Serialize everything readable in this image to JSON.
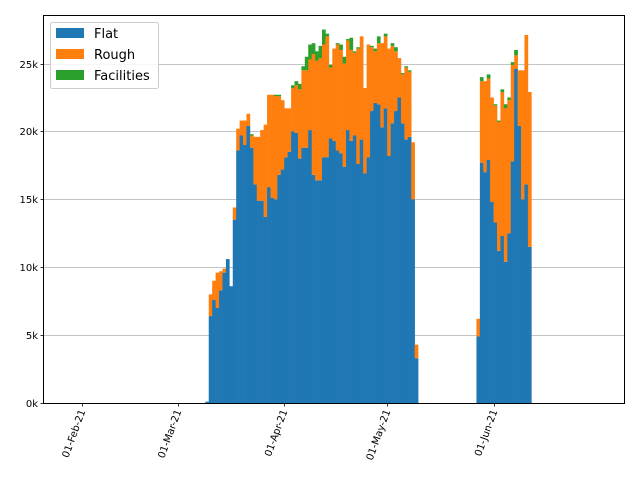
{
  "chart_data": {
    "type": "bar",
    "stacked": true,
    "title": "",
    "xlabel": "",
    "ylabel": "",
    "ylim": [
      0,
      28500
    ],
    "grid": "y",
    "legend_position": "top-left",
    "y_ticks": [
      {
        "value": 0,
        "label": "0k"
      },
      {
        "value": 5000,
        "label": "5k"
      },
      {
        "value": 10000,
        "label": "10k"
      },
      {
        "value": 15000,
        "label": "15k"
      },
      {
        "value": 20000,
        "label": "20k"
      },
      {
        "value": 25000,
        "label": "25k"
      }
    ],
    "x_ticks": [
      {
        "date": "2021-02-01",
        "label": "01-Feb-21"
      },
      {
        "date": "2021-03-01",
        "label": "01-Mar-21"
      },
      {
        "date": "2021-04-01",
        "label": "01-Apr-21"
      },
      {
        "date": "2021-05-01",
        "label": "01-May-21"
      },
      {
        "date": "2021-06-01",
        "label": "01-Jun-21"
      }
    ],
    "xlim": [
      "2021-01-21",
      "2021-07-09"
    ],
    "series": [
      {
        "name": "Flat",
        "color": "#1f77b4"
      },
      {
        "name": "Rough",
        "color": "#ff7f0e"
      },
      {
        "name": "Facilities",
        "color": "#2ca02c"
      }
    ],
    "segments": [
      {
        "start": "2021-03-09",
        "flat": [
          100,
          6400,
          7600,
          7000,
          8300,
          9600,
          10600,
          8600,
          13500,
          18600,
          19700,
          19000,
          20400,
          18800,
          16100,
          14900,
          14900,
          13700,
          15900,
          15100,
          15000,
          16800,
          17200,
          18100,
          18500,
          20000,
          19900,
          18000,
          18800,
          18800,
          20100,
          16800,
          16400,
          16400,
          18100,
          18100,
          19500,
          19300,
          18600,
          18400,
          17400,
          20100,
          19300,
          19700,
          17600,
          19400,
          16900,
          18100,
          21500,
          22100,
          22000,
          20300,
          21700,
          18200,
          20600,
          21500,
          22500,
          20600,
          19400,
          19600,
          15000
        ],
        "rough": [
          0,
          1600,
          1400,
          2600,
          1400,
          300,
          0,
          0,
          900,
          1600,
          1100,
          1800,
          900,
          900,
          3500,
          4700,
          5200,
          6800,
          6800,
          7600,
          7600,
          5800,
          5100,
          3600,
          3200,
          3200,
          3500,
          5100,
          5700,
          5700,
          5200,
          8900,
          8800,
          9000,
          8300,
          8900,
          5200,
          6800,
          7800,
          7600,
          7600,
          6600,
          6700,
          6100,
          8500,
          7600,
          6300,
          8300,
          4700,
          3800,
          4500,
          6200,
          5300,
          7900,
          5700,
          4400,
          2900,
          3600,
          5300,
          4800,
          4200
        ],
        "facilities": [
          0,
          0,
          0,
          0,
          0,
          0,
          0,
          0,
          0,
          0,
          0,
          0,
          0,
          100,
          0,
          0,
          0,
          0,
          0,
          0,
          100,
          100,
          0,
          0,
          0,
          200,
          300,
          400,
          300,
          1000,
          1100,
          800,
          700,
          900,
          1100,
          200,
          200,
          0,
          100,
          400,
          500,
          100,
          900,
          100,
          100,
          0,
          0,
          0,
          100,
          200,
          500,
          0,
          200,
          0,
          200,
          300,
          0,
          100,
          100,
          100,
          0
        ]
      },
      {
        "start": "2021-05-09",
        "flat": [
          3300
        ],
        "rough": [
          1000
        ],
        "facilities": [
          0
        ]
      },
      {
        "start": "2021-05-27",
        "flat": [
          4900,
          17700,
          17000,
          17900,
          14800,
          13300,
          11200,
          12300,
          10400,
          12500,
          17800,
          24600,
          20400,
          15000,
          16100,
          11500
        ],
        "rough": [
          1300,
          6000,
          6700,
          6000,
          7700,
          8600,
          9500,
          10600,
          11300,
          9800,
          7100,
          1000,
          4100,
          9500,
          11000,
          11400
        ],
        "facilities": [
          0,
          300,
          0,
          300,
          0,
          100,
          100,
          200,
          300,
          200,
          200,
          400,
          0,
          0,
          0,
          0
        ]
      }
    ]
  }
}
